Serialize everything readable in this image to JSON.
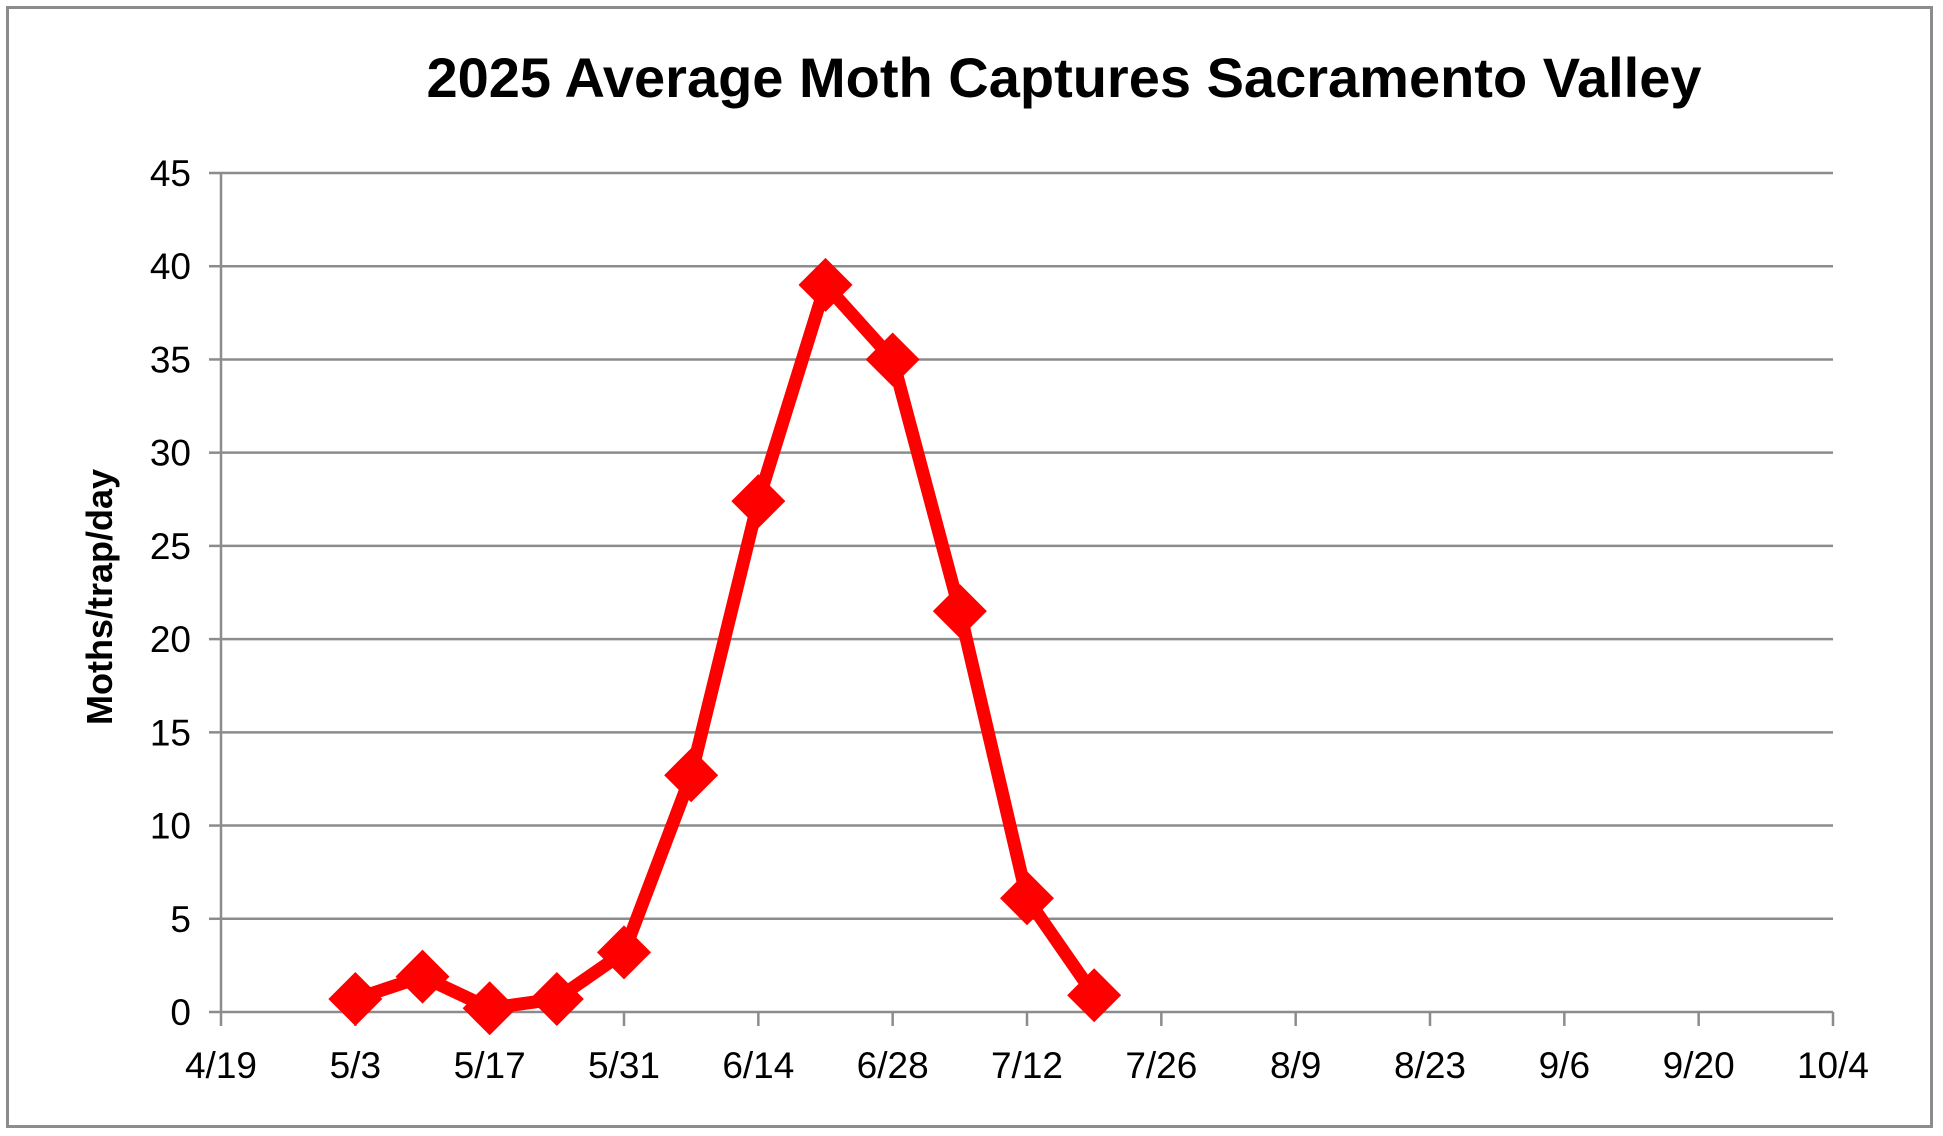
{
  "chart_data": {
    "type": "line",
    "title": "2025 Average Moth Captures Sacramento Valley",
    "xlabel": "",
    "ylabel": "Moths/trap/day",
    "grid": true,
    "legend": "none",
    "ylim": [
      0,
      45
    ],
    "yticks": [
      0,
      5,
      10,
      15,
      20,
      25,
      30,
      35,
      40,
      45
    ],
    "xlim": [
      "4/19",
      "10/4"
    ],
    "xticks": [
      "4/19",
      "5/3",
      "5/17",
      "5/31",
      "6/14",
      "6/28",
      "7/12",
      "7/26",
      "8/9",
      "8/23",
      "9/6",
      "9/20",
      "10/4"
    ],
    "series": [
      {
        "color": "#ff0000",
        "marker": "diamond",
        "x": [
          "5/3",
          "5/10",
          "5/17",
          "5/24",
          "5/31",
          "6/7",
          "6/14",
          "6/21",
          "6/28",
          "7/5",
          "7/12",
          "7/19"
        ],
        "values": [
          0.7,
          1.9,
          0.2,
          0.7,
          3.2,
          12.7,
          27.4,
          39.0,
          35.0,
          21.5,
          6.1,
          0.9
        ]
      }
    ]
  },
  "colors": {
    "series": "#ff0000",
    "grid": "#8c8c8c",
    "axis": "#8c8c8c",
    "frame": "#8c8c8c",
    "background": "#ffffff"
  }
}
